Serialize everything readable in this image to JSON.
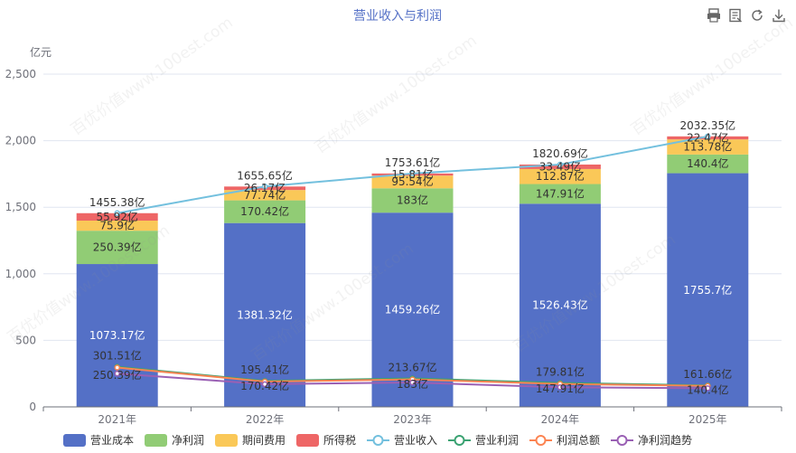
{
  "chart_data": {
    "type": "bar",
    "title": "营业收入与利润",
    "ylabel": "亿元",
    "ylim": [
      0,
      2500
    ],
    "yticks": [
      "0",
      "500",
      "1,000",
      "1,500",
      "2,000",
      "2,500"
    ],
    "ytick_values": [
      0,
      500,
      1000,
      1500,
      2000,
      2500
    ],
    "categories": [
      "2021年",
      "2022年",
      "2023年",
      "2024年",
      "2025年"
    ],
    "stacked_series": [
      {
        "name": "营业成本",
        "color": "#5470c6",
        "values": [
          1073.17,
          1381.32,
          1459.26,
          1526.43,
          1755.7
        ],
        "labels": [
          "1073.17亿",
          "1381.32亿",
          "1459.26亿",
          "1526.43亿",
          "1755.7亿"
        ]
      },
      {
        "name": "净利润",
        "color": "#91cc75",
        "values": [
          250.39,
          170.42,
          183,
          147.91,
          140.4
        ],
        "labels": [
          "250.39亿",
          "170.42亿",
          "183亿",
          "147.91亿",
          "140.4亿"
        ]
      },
      {
        "name": "期间费用",
        "color": "#fac858",
        "values": [
          75.9,
          77.74,
          95.54,
          112.87,
          113.78
        ],
        "labels": [
          "75.9亿",
          "77.74亿",
          "95.54亿",
          "112.87亿",
          "113.78亿"
        ]
      },
      {
        "name": "所得税",
        "color": "#ee6666",
        "values": [
          55.92,
          26.17,
          15.81,
          33.49,
          22.47
        ],
        "labels": [
          "55.92亿",
          "26.17亿",
          "15.81亿",
          "33.49亿",
          "22.47亿"
        ]
      }
    ],
    "line_series": [
      {
        "name": "营业收入",
        "color": "#73c0de",
        "values": [
          1455.38,
          1655.65,
          1753.61,
          1820.69,
          2032.35
        ],
        "labels": [
          "1455.38亿",
          "1655.65亿",
          "1753.61亿",
          "1820.69亿",
          "2032.35亿"
        ]
      },
      {
        "name": "营业利润",
        "color": "#3ba272",
        "values": [
          301.51,
          195.41,
          213.67,
          179.81,
          161.66
        ],
        "labels": [
          "301.51亿",
          "195.41亿",
          "213.67亿",
          "179.81亿",
          "161.66亿"
        ]
      },
      {
        "name": "利润总额",
        "color": "#fc8452",
        "values": [
          295.8,
          190.1,
          206.4,
          172.3,
          157.9
        ],
        "labels": []
      },
      {
        "name": "净利润趋势",
        "color": "#9a60b4",
        "values": [
          250.39,
          170.42,
          183,
          147.91,
          140.4
        ],
        "labels": [
          "250.39亿",
          "170.42亿",
          "183亿",
          "147.91亿",
          "140.4亿"
        ]
      }
    ],
    "legend_position": "bottom",
    "grid": true
  },
  "toolbar": {
    "icons": [
      "print-icon",
      "data-view-icon",
      "refresh-icon",
      "download-icon"
    ]
  },
  "watermark": "百优价值www.100est.com"
}
